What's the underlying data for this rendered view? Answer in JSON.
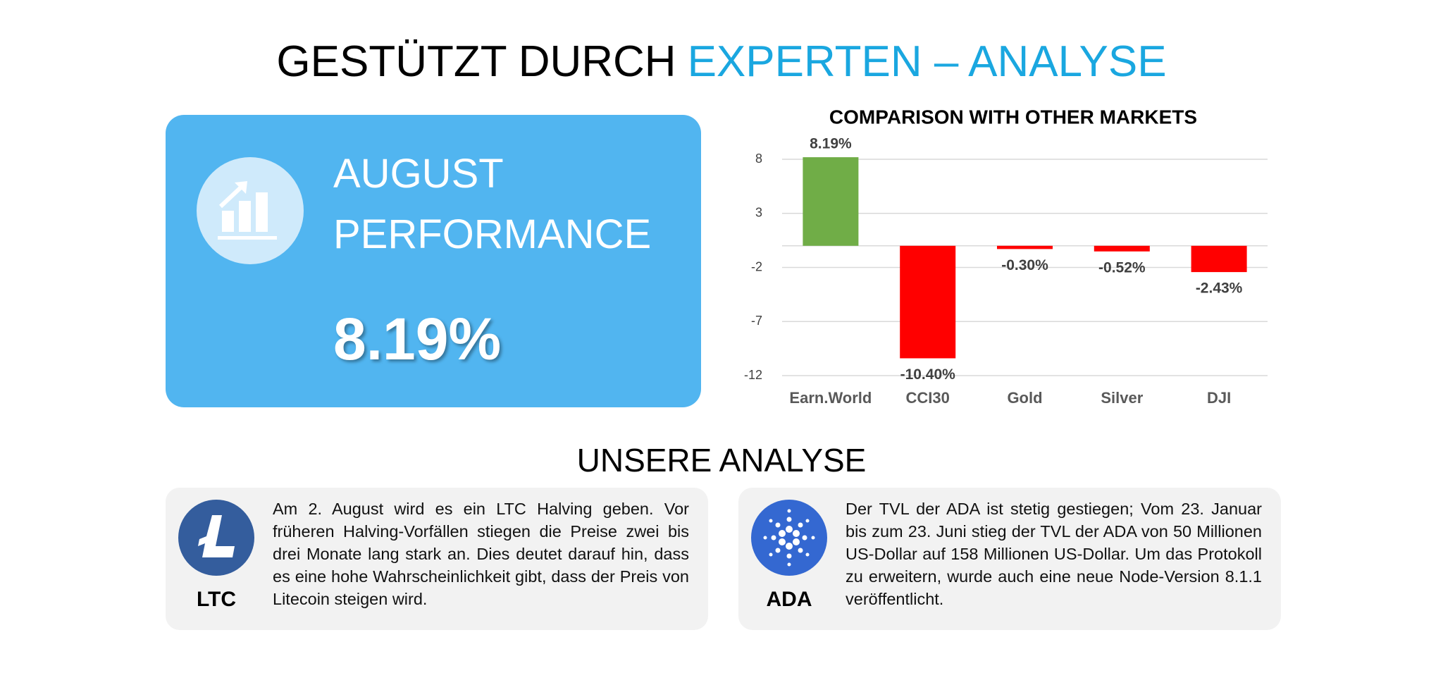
{
  "header": {
    "title_dark": "GESTÜTZT DURCH",
    "title_accent": "EXPERTEN – ANALYSE"
  },
  "performance": {
    "line1": "AUGUST",
    "line2": "PERFORMANCE",
    "value": "8.19%"
  },
  "chart_data": {
    "type": "bar",
    "title": "COMPARISON  WITH OTHER MARKETS",
    "categories": [
      "Earn.World",
      "CCI30",
      "Gold",
      "Silver",
      "DJI"
    ],
    "values": [
      8.19,
      -10.4,
      -0.3,
      -0.52,
      -2.43
    ],
    "value_labels": [
      "8.19%",
      "-10.40%",
      "-0.30%",
      "-0.52%",
      "-2.43%"
    ],
    "colors": [
      "#70ad47",
      "#ff0000",
      "#ff0000",
      "#ff0000",
      "#ff0000"
    ],
    "ylim": [
      -12,
      8
    ],
    "yticks": [
      8,
      3,
      -2,
      -7,
      -12
    ],
    "grid": true
  },
  "analysis": {
    "title": "UNSERE ANALYSE",
    "cards": [
      {
        "label": "LTC",
        "text": "Am 2. August wird es ein LTC Halving geben. Vor früheren Halving-Vorfällen stiegen die Preise zwei bis drei Monate lang stark an. Dies deutet darauf hin, dass es eine hohe Wahrscheinlichkeit gibt, dass der Preis von Litecoin steigen wird."
      },
      {
        "label": "ADA",
        "text": "Der TVL der ADA ist stetig gestiegen; Vom 23. Januar bis zum 23. Juni stieg der TVL der ADA von 50 Millionen US-Dollar auf 158 Millionen US-Dollar. Um das Protokoll zu erweitern, wurde auch eine neue Node-Version 8.1.1 veröffentlicht."
      }
    ]
  }
}
